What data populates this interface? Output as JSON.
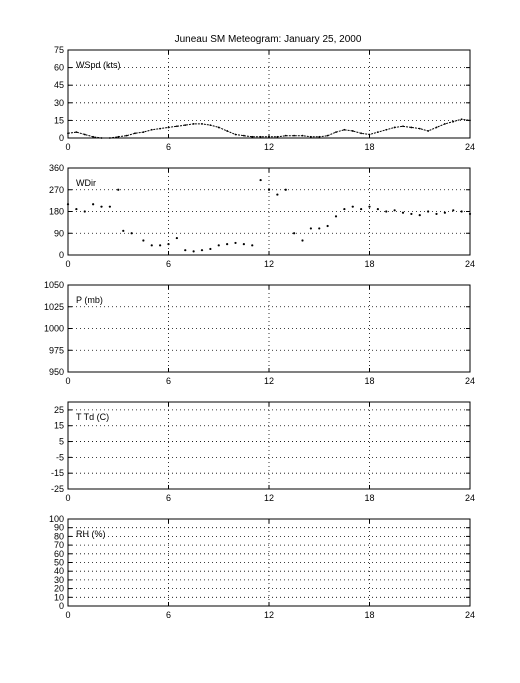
{
  "figure": {
    "title": "Juneau SM Meteogram:    January 25, 2000"
  },
  "chart_data": [
    {
      "type": "line",
      "label": "WSpd (kts)",
      "xlim": [
        0,
        24
      ],
      "ylim": [
        0,
        75
      ],
      "xticks": [
        0,
        6,
        12,
        18,
        24
      ],
      "yticks": [
        0,
        15,
        30,
        45,
        60,
        75
      ],
      "grid": true,
      "x": [
        0,
        0.5,
        1,
        1.5,
        2,
        2.5,
        3,
        3.5,
        4,
        4.5,
        5,
        5.5,
        6,
        6.5,
        7,
        7.5,
        8,
        8.5,
        9,
        9.5,
        10,
        10.5,
        11,
        11.5,
        12,
        12.5,
        13,
        13.5,
        14,
        14.5,
        15,
        15.5,
        16,
        16.5,
        17,
        17.5,
        18,
        18.5,
        19,
        19.5,
        20,
        20.5,
        21,
        21.5,
        22,
        22.5,
        23,
        23.5,
        24
      ],
      "y": [
        4,
        5,
        3,
        1,
        0,
        0,
        1,
        2,
        4,
        5,
        7,
        8,
        9,
        10,
        11,
        12,
        12,
        11,
        9,
        6,
        3,
        2,
        1,
        1,
        1,
        1,
        2,
        2,
        2,
        1,
        1,
        2,
        5,
        7,
        6,
        4,
        3,
        5,
        7,
        9,
        10,
        9,
        8,
        6,
        9,
        12,
        14,
        16,
        15
      ]
    },
    {
      "type": "scatter",
      "label": "WDir",
      "xlim": [
        0,
        24
      ],
      "ylim": [
        0,
        360
      ],
      "xticks": [
        0,
        6,
        12,
        18,
        24
      ],
      "yticks": [
        0,
        90,
        180,
        270,
        360
      ],
      "grid": true,
      "x": [
        0,
        0.5,
        1,
        1.5,
        2,
        2.5,
        3,
        3.3,
        3.8,
        4.5,
        5,
        5.5,
        6,
        6.5,
        7,
        7.5,
        8,
        8.5,
        9,
        9.5,
        10,
        10.5,
        11,
        11.5,
        12,
        12.5,
        13,
        13.5,
        14,
        14.5,
        15,
        15.5,
        16,
        16.5,
        17,
        17.5,
        18,
        18.5,
        19,
        19.5,
        20,
        20.5,
        21,
        21.5,
        22,
        22.5,
        23,
        23.5,
        24
      ],
      "y": [
        210,
        190,
        180,
        210,
        200,
        200,
        270,
        100,
        90,
        60,
        40,
        40,
        45,
        70,
        20,
        15,
        20,
        25,
        40,
        45,
        50,
        45,
        40,
        310,
        270,
        250,
        270,
        90,
        60,
        110,
        110,
        120,
        160,
        190,
        200,
        190,
        200,
        190,
        180,
        185,
        175,
        170,
        165,
        180,
        170,
        175,
        185,
        180,
        170
      ]
    },
    {
      "type": "line",
      "label": "P (mb)",
      "xlim": [
        0,
        24
      ],
      "ylim": [
        950,
        1050
      ],
      "xticks": [
        0,
        6,
        12,
        18,
        24
      ],
      "yticks": [
        950,
        975,
        1000,
        1025,
        1050
      ],
      "grid": true,
      "x": [],
      "y": []
    },
    {
      "type": "line",
      "label": "T Td (C)",
      "xlim": [
        0,
        24
      ],
      "ylim": [
        -25,
        30
      ],
      "xticks": [
        0,
        6,
        12,
        18,
        24
      ],
      "yticks": [
        -25,
        -15,
        -5,
        5,
        15,
        25
      ],
      "grid": true,
      "x": [],
      "y": []
    },
    {
      "type": "line",
      "label": "RH (%)",
      "xlim": [
        0,
        24
      ],
      "ylim": [
        0,
        100
      ],
      "xticks": [
        0,
        6,
        12,
        18,
        24
      ],
      "yticks": [
        0,
        10,
        20,
        30,
        40,
        50,
        60,
        70,
        80,
        90,
        100
      ],
      "grid": true,
      "x": [],
      "y": []
    }
  ]
}
